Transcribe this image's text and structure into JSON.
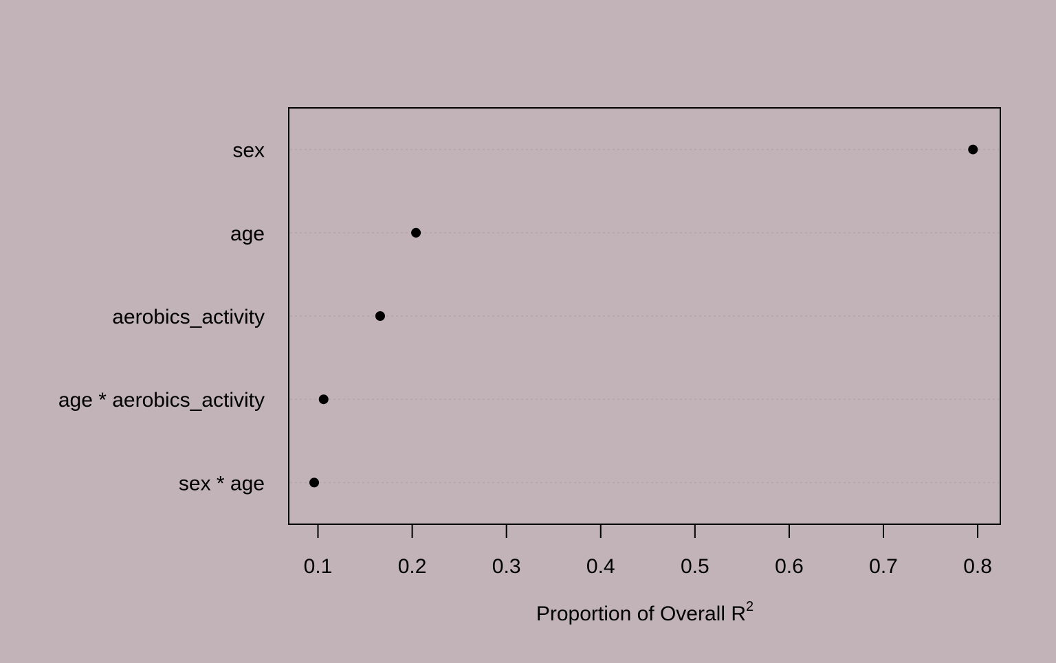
{
  "chart_data": {
    "type": "scatter",
    "categories": [
      "sex",
      "age",
      "aerobics_activity",
      "age * aerobics_activity",
      "sex * age"
    ],
    "values": [
      0.795,
      0.204,
      0.166,
      0.106,
      0.096
    ],
    "xlabel": "Proportion of Overall R",
    "xlabel_superscript": "2",
    "xlim": [
      0.069,
      0.824
    ],
    "xticks": [
      0.1,
      0.2,
      0.3,
      0.4,
      0.5,
      0.6,
      0.7,
      0.8
    ],
    "xtick_labels": [
      "0.1",
      "0.2",
      "0.3",
      "0.4",
      "0.5",
      "0.6",
      "0.7",
      "0.8"
    ],
    "grid": "horizontal dotted",
    "colors": {
      "background": "#c1b3b8",
      "point": "#000000",
      "frame": "#000000",
      "gridline": "#b3a5aa"
    }
  }
}
